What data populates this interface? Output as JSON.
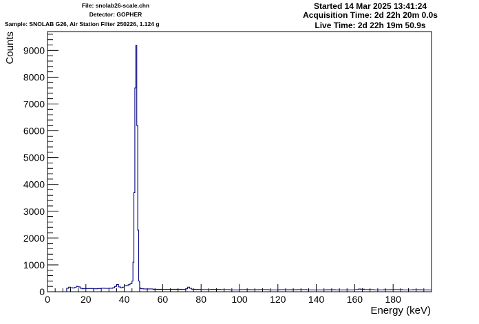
{
  "header": {
    "file": "File: snolab26-scale.chn",
    "detector": "Detector: GOPHER",
    "sample": "Sample: SNOLAB G26, Air Station Filter 250226, 1.124 g",
    "started": "Started 14 Mar 2025 13:41:24",
    "acquisition": "Acquisition Time: 2d 22h 20m 0.0s",
    "live": "Live Time: 2d 22h 19m 50.9s"
  },
  "colors": {
    "series": "#000080",
    "axis": "#000000",
    "background": "#ffffff"
  },
  "chart_data": {
    "type": "line",
    "style": "histogram-step",
    "xlabel": "Energy (keV)",
    "ylabel": "Counts",
    "xlim": [
      0,
      200
    ],
    "ylim": [
      0,
      9700
    ],
    "xticks": [
      0,
      20,
      40,
      60,
      80,
      100,
      120,
      140,
      160,
      180
    ],
    "yticks": [
      0,
      1000,
      2000,
      3000,
      4000,
      5000,
      6000,
      7000,
      8000,
      9000
    ],
    "grid": false,
    "x": [
      9.5,
      10,
      11,
      12,
      13,
      14,
      15,
      16,
      17,
      18,
      19,
      20,
      22,
      24,
      26,
      28,
      30,
      32,
      34,
      35,
      36,
      37,
      38,
      39,
      40,
      41,
      42,
      43,
      44,
      44.5,
      45,
      45.5,
      46,
      46.5,
      47,
      47.5,
      48,
      48.5,
      49,
      50,
      55,
      60,
      65,
      70,
      72,
      73,
      74,
      75,
      76,
      77,
      80,
      85,
      90,
      95,
      100,
      105,
      110,
      115,
      120,
      125,
      130,
      135,
      140,
      145,
      150,
      155,
      160,
      162,
      163,
      165,
      170,
      175,
      180,
      185,
      190,
      195,
      200
    ],
    "y": [
      0,
      130,
      170,
      150,
      140,
      160,
      200,
      180,
      130,
      110,
      120,
      120,
      120,
      110,
      120,
      130,
      125,
      130,
      150,
      200,
      270,
      180,
      150,
      170,
      220,
      230,
      260,
      300,
      400,
      1100,
      3700,
      7600,
      9180,
      6200,
      2300,
      400,
      140,
      120,
      110,
      105,
      90,
      85,
      90,
      85,
      110,
      170,
      130,
      95,
      90,
      85,
      80,
      85,
      80,
      70,
      80,
      75,
      80,
      70,
      75,
      75,
      80,
      70,
      70,
      75,
      70,
      70,
      80,
      100,
      95,
      80,
      70,
      75,
      80,
      70,
      75,
      70,
      70
    ]
  }
}
